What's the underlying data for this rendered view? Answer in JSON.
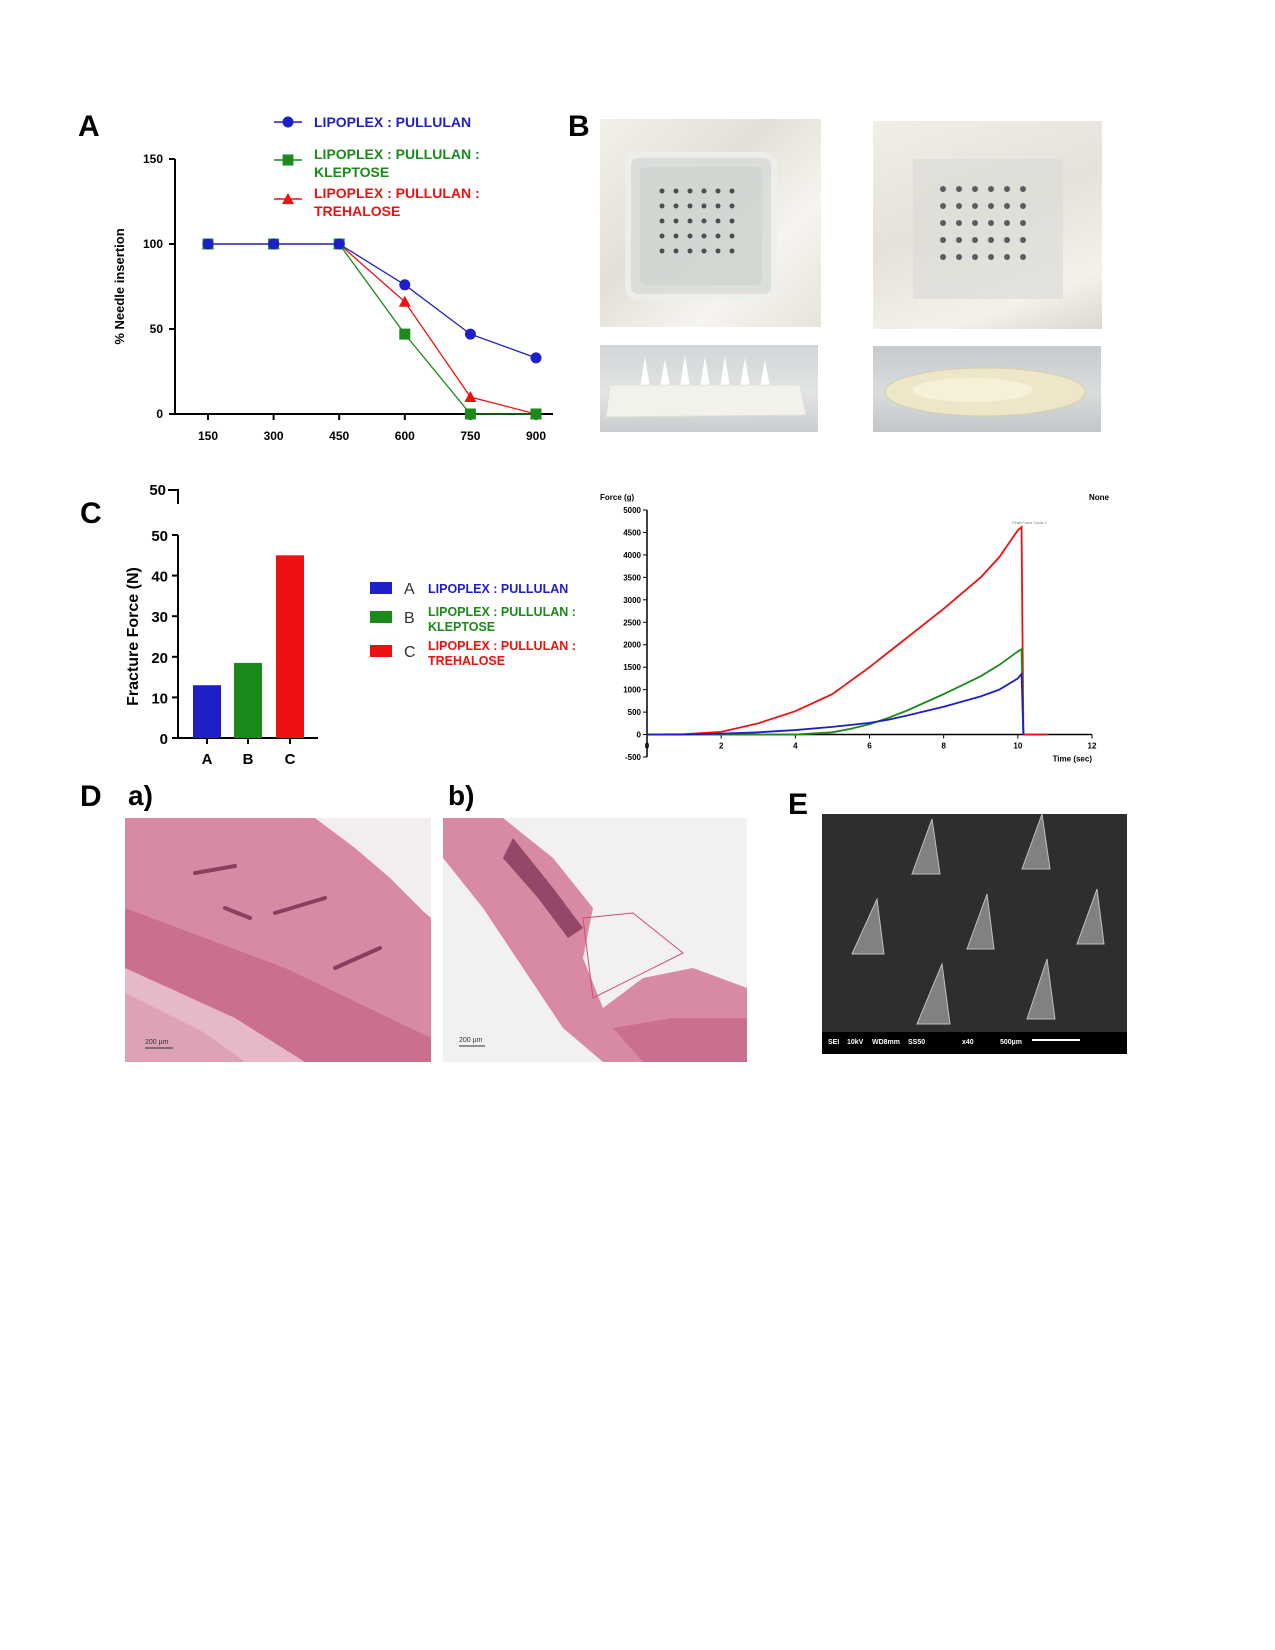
{
  "panels": {
    "A": "A",
    "B": "B",
    "C": "C",
    "D": "D",
    "E": "E",
    "Da": "a)",
    "Db": "b)"
  },
  "colors": {
    "blue": "#1f1fc8",
    "green": "#1a8a1a",
    "red": "#ee1111"
  },
  "chart_data": [
    {
      "id": "A",
      "type": "line",
      "title": "",
      "xlabel": "",
      "ylabel": "% Needle insertion",
      "x": [
        150,
        300,
        450,
        600,
        750,
        900
      ],
      "xticks": [
        "150",
        "300",
        "450",
        "600",
        "750",
        "900"
      ],
      "yticks": [
        "0",
        "50",
        "100",
        "150"
      ],
      "ylim": [
        0,
        150
      ],
      "grid": false,
      "legend_position": "top",
      "series": [
        {
          "name": "LIPOPLEX : PULLULAN",
          "name_lines": [
            "LIPOPLEX : PULLULAN"
          ],
          "color": "#1f1fc8",
          "marker": "circle",
          "values": [
            100,
            100,
            100,
            76,
            47,
            33
          ]
        },
        {
          "name": "LIPOPLEX : PULLULAN : KLEPTOSE",
          "name_lines": [
            "LIPOPLEX : PULLULAN :",
            "KLEPTOSE"
          ],
          "color": "#1a8a1a",
          "marker": "square",
          "values": [
            100,
            100,
            100,
            47,
            0,
            0
          ]
        },
        {
          "name": "LIPOPLEX : PULLULAN : TREHALOSE",
          "name_lines": [
            "LIPOPLEX : PULLULAN :",
            "TREHALOSE"
          ],
          "color": "#ee1111",
          "marker": "triangle",
          "values": [
            100,
            100,
            100,
            66,
            10,
            0
          ]
        }
      ]
    },
    {
      "id": "C1",
      "type": "bar",
      "title": "",
      "xlabel": "",
      "ylabel": "Fracture Force (N)",
      "categories": [
        "A",
        "B",
        "C"
      ],
      "values": [
        13,
        18.5,
        45
      ],
      "colors": [
        "#1f1fc8",
        "#1a8a1a",
        "#ee1111"
      ],
      "yticks": [
        "0",
        "10",
        "20",
        "30",
        "40",
        "50"
      ],
      "ytick_top_label": "50",
      "ylim": [
        0,
        50
      ],
      "legend_position": "right",
      "legend": [
        {
          "key": "A",
          "lines": [
            "LIPOPLEX : PULLULAN"
          ],
          "color": "#1f1fc8"
        },
        {
          "key": "B",
          "lines": [
            "LIPOPLEX : PULLULAN :",
            "KLEPTOSE"
          ],
          "color": "#1a8a1a"
        },
        {
          "key": "C",
          "lines": [
            "LIPOPLEX : PULLULAN :",
            "TREHALOSE"
          ],
          "color": "#ee1111"
        }
      ]
    },
    {
      "id": "C2",
      "type": "line",
      "title": "",
      "ylabel": "Force (g)",
      "xlabel": "Time (sec)",
      "corner_label": "None",
      "annotation": "Peak Force Cycle 1",
      "xlim": [
        0,
        12
      ],
      "ylim": [
        -500,
        5000
      ],
      "xticks": [
        "0",
        "2",
        "4",
        "6",
        "8",
        "10",
        "12"
      ],
      "yticks": [
        "-500",
        "0",
        "500",
        "1000",
        "1500",
        "2000",
        "2500",
        "3000",
        "3500",
        "4000",
        "4500",
        "5000"
      ],
      "grid": false,
      "series": [
        {
          "color": "#ee1111",
          "x": [
            0,
            1,
            2,
            3,
            4,
            5,
            6,
            7,
            8,
            9,
            9.5,
            10,
            10.1,
            10.15,
            10.2,
            10.8
          ],
          "y": [
            0,
            10,
            60,
            250,
            520,
            900,
            1500,
            2150,
            2800,
            3500,
            3950,
            4550,
            4620,
            0,
            0,
            0
          ]
        },
        {
          "color": "#1a8a1a",
          "x": [
            0,
            2,
            4,
            5,
            5.5,
            6,
            6.5,
            7,
            8,
            9,
            9.5,
            10,
            10.1,
            10.15
          ],
          "y": [
            0,
            0,
            0,
            50,
            130,
            230,
            370,
            530,
            900,
            1300,
            1550,
            1850,
            1900,
            0
          ]
        },
        {
          "color": "#1f1fc8",
          "x": [
            0,
            1,
            2,
            3,
            4,
            5,
            6,
            6.5,
            7,
            8,
            9,
            9.5,
            10,
            10.1,
            10.15
          ],
          "y": [
            0,
            0,
            20,
            50,
            100,
            170,
            260,
            330,
            420,
            620,
            850,
            1000,
            1250,
            1350,
            0
          ]
        }
      ]
    }
  ],
  "histology": {
    "scale_a": "200 µm",
    "scale_b": "200 µm"
  },
  "sem": {
    "info": [
      "SEI",
      "10kV",
      "WD8mm",
      "SS50",
      "x40",
      "500µm"
    ]
  }
}
